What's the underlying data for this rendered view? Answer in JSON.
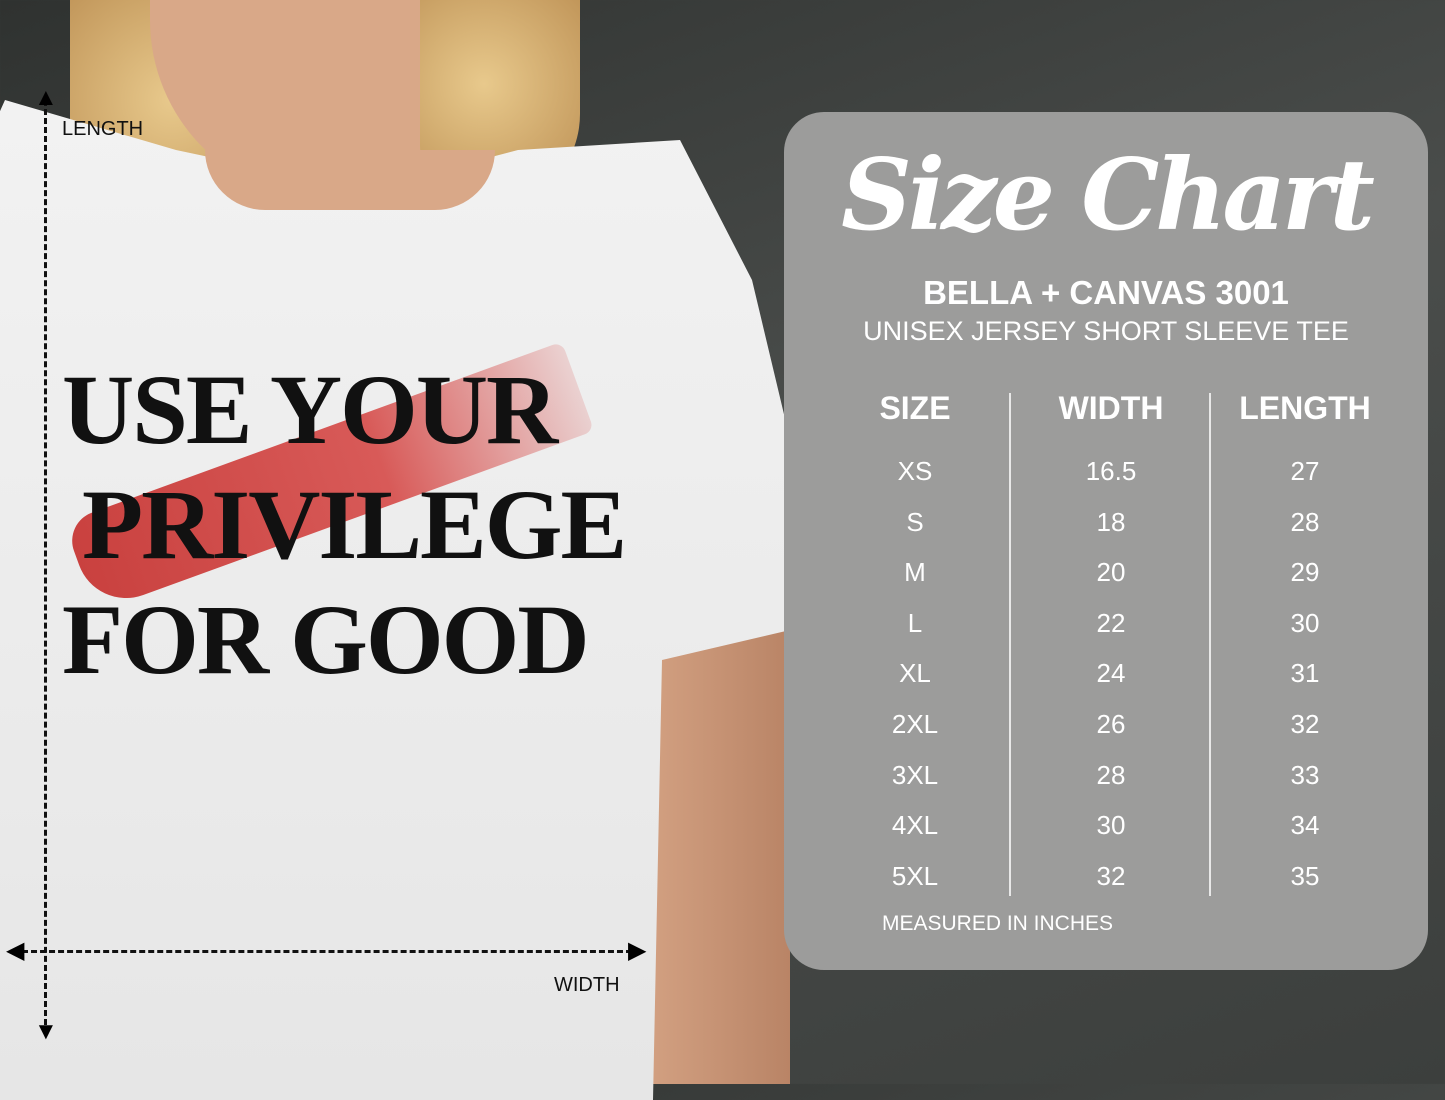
{
  "design": {
    "lines": [
      "USE YOUR",
      "PRIVILEGE",
      "FOR GOOD"
    ],
    "brush_color": "#d04a4a"
  },
  "measure": {
    "length_label": "LENGTH",
    "width_label": "WIDTH"
  },
  "panel": {
    "title": "Size Chart",
    "brand": "BELLA + CANVAS 3001",
    "subtitle": "UNISEX JERSEY SHORT SLEEVE TEE",
    "headers": [
      "SIZE",
      "WIDTH",
      "LENGTH"
    ],
    "rows": [
      [
        "XS",
        "16.5",
        "27"
      ],
      [
        "S",
        "18",
        "28"
      ],
      [
        "M",
        "20",
        "29"
      ],
      [
        "L",
        "22",
        "30"
      ],
      [
        "XL",
        "24",
        "31"
      ],
      [
        "2XL",
        "26",
        "32"
      ],
      [
        "3XL",
        "28",
        "33"
      ],
      [
        "4XL",
        "30",
        "34"
      ],
      [
        "5XL",
        "32",
        "35"
      ]
    ],
    "note": "MEASURED IN INCHES",
    "panel_color": "#9c9c9b"
  }
}
